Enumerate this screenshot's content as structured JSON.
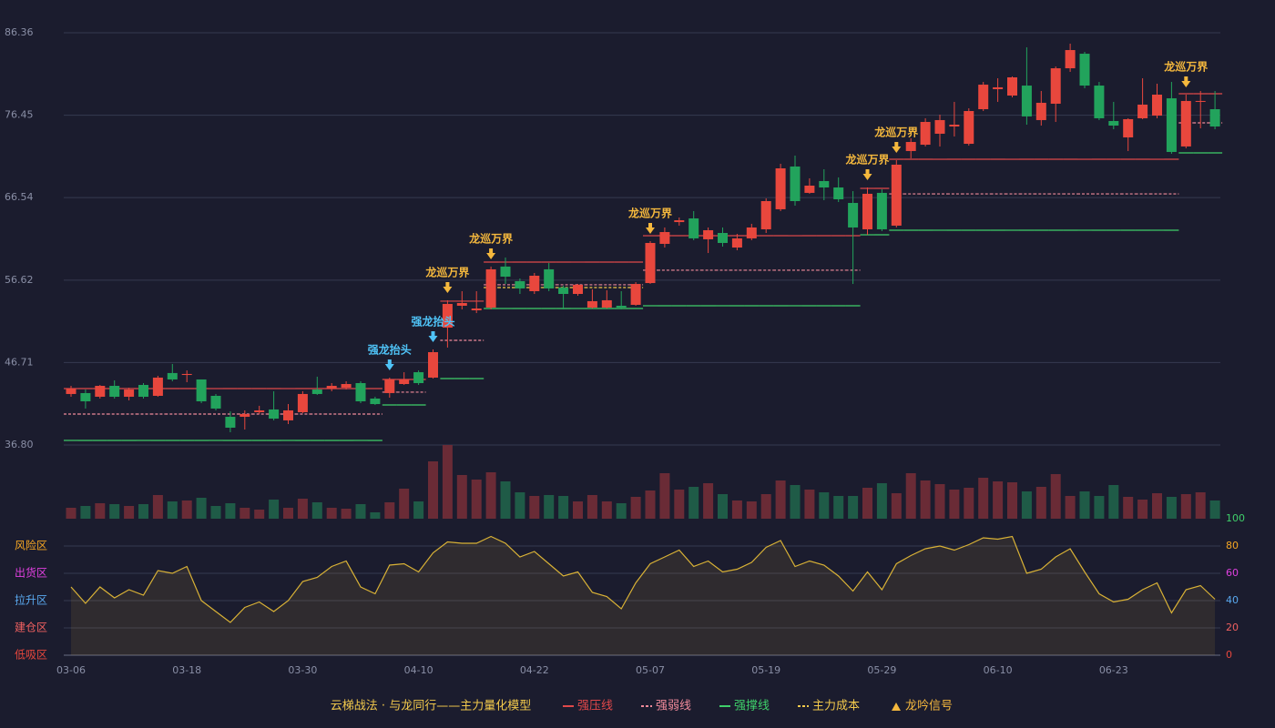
{
  "chart_data": {
    "type": "candlestick",
    "title": "云梯战法 · 与龙同行——主力量化模型",
    "categories": [
      "03-06",
      null,
      null,
      null,
      null,
      null,
      null,
      null,
      "03-18",
      null,
      null,
      null,
      null,
      null,
      null,
      null,
      "03-30",
      null,
      null,
      null,
      null,
      null,
      null,
      null,
      "04-10",
      null,
      null,
      null,
      null,
      null,
      null,
      null,
      "04-22",
      null,
      null,
      null,
      null,
      null,
      null,
      null,
      "05-07",
      null,
      null,
      null,
      null,
      null,
      null,
      null,
      "05-19",
      null,
      null,
      null,
      null,
      null,
      null,
      null,
      "05-29",
      null,
      null,
      null,
      null,
      null,
      null,
      null,
      "06-10",
      null,
      null,
      null,
      null,
      null,
      null,
      null,
      "06-23",
      null,
      null,
      null,
      null,
      null,
      null,
      null
    ],
    "open": [
      42.93,
      43.04,
      42.6,
      43.91,
      42.6,
      44.02,
      42.71,
      45.45,
      45.22,
      44.68,
      42.71,
      40.19,
      40.19,
      40.74,
      41.07,
      39.76,
      40.74,
      43.47,
      43.58,
      43.69,
      44.24,
      42.38,
      43.04,
      44.13,
      45.55,
      44.9,
      50.91,
      53.54,
      52.99,
      53.32,
      58.25,
      56.49,
      55.29,
      57.92,
      55.73,
      54.96,
      53.32,
      53.32,
      53.54,
      53.65,
      56.27,
      60.98,
      63.6,
      64.04,
      61.53,
      62.29,
      60.54,
      61.64,
      62.73,
      65.14,
      70.28,
      67.11,
      68.53,
      67.76,
      65.9,
      62.73,
      67.11,
      63.17,
      72.14,
      72.9,
      74.22,
      75.09,
      73.01,
      77.17,
      79.58,
      78.81,
      80.01,
      75.86,
      77.83,
      82.09,
      83.84,
      80.01,
      75.75,
      73.78,
      76.08,
      76.4,
      78.48,
      72.69,
      78.05,
      77.17
    ],
    "high": [
      43.91,
      43.47,
      44.02,
      44.57,
      43.69,
      44.24,
      45.12,
      46.54,
      45.77,
      44.68,
      42.93,
      40.85,
      40.96,
      41.51,
      43.26,
      41.72,
      43.26,
      45.01,
      44.24,
      44.46,
      44.46,
      42.6,
      44.9,
      45.55,
      45.77,
      48.29,
      54.2,
      55.29,
      55.29,
      58.25,
      59.34,
      56.82,
      57.48,
      58.68,
      55.95,
      56.16,
      55.51,
      55.4,
      55.29,
      56.38,
      61.31,
      62.95,
      64.15,
      64.92,
      62.95,
      62.95,
      62.18,
      63.39,
      66.45,
      70.61,
      71.59,
      68.86,
      69.95,
      68.97,
      67.32,
      67.76,
      67.54,
      71.04,
      73.67,
      76.08,
      76.51,
      78.05,
      77.28,
      80.45,
      80.89,
      81.11,
      84.61,
      79.36,
      82.31,
      85.05,
      84.06,
      80.45,
      78.05,
      76.08,
      80.89,
      80.23,
      80.45,
      78.92,
      79.36,
      79.36
    ],
    "low": [
      42.6,
      41.18,
      42.38,
      42.38,
      42.16,
      42.38,
      42.6,
      44.46,
      44.35,
      41.83,
      40.96,
      38.33,
      38.66,
      40.52,
      39.76,
      39.32,
      40.63,
      42.82,
      43.26,
      43.47,
      41.83,
      41.61,
      42.49,
      44.02,
      44.02,
      44.79,
      48.51,
      53.1,
      52.66,
      53.1,
      56.16,
      54.96,
      54.96,
      55.29,
      53.1,
      54.74,
      53.21,
      53.21,
      53.1,
      53.54,
      56.16,
      60.54,
      63.17,
      61.42,
      59.88,
      60.65,
      60.21,
      61.42,
      62.29,
      64.92,
      65.57,
      67.0,
      66.23,
      66.01,
      56.16,
      62.07,
      62.51,
      62.95,
      71.26,
      72.69,
      72.69,
      73.89,
      72.79,
      76.95,
      78.05,
      78.59,
      75.31,
      75.2,
      75.64,
      81.66,
      79.69,
      75.86,
      74.76,
      72.14,
      75.97,
      76.08,
      71.81,
      72.47,
      74.87,
      74.76
    ],
    "close": [
      43.58,
      42.05,
      43.91,
      42.6,
      43.47,
      42.6,
      44.9,
      44.68,
      45.34,
      42.05,
      41.18,
      38.88,
      40.52,
      40.96,
      39.97,
      40.96,
      42.93,
      42.93,
      43.91,
      44.13,
      42.05,
      41.72,
      44.68,
      44.68,
      44.24,
      47.96,
      53.76,
      53.87,
      53.21,
      57.92,
      57.04,
      55.62,
      57.15,
      55.62,
      54.96,
      56.06,
      54.09,
      54.2,
      53.32,
      56.16,
      61.09,
      62.4,
      63.82,
      61.64,
      62.62,
      61.09,
      61.64,
      62.95,
      66.12,
      70.06,
      66.12,
      67.98,
      67.76,
      66.34,
      62.95,
      67.0,
      62.73,
      70.5,
      73.23,
      75.64,
      75.86,
      75.31,
      76.95,
      80.12,
      79.8,
      81.0,
      76.3,
      77.94,
      82.09,
      84.28,
      80.01,
      76.08,
      75.2,
      75.97,
      77.72,
      78.92,
      72.03,
      78.16,
      78.16,
      75.09
    ],
    "up_color": "#e8473d",
    "down_color": "#22a35c",
    "ylim": [
      36.8,
      86.36
    ],
    "yticks": [
      {
        "value": 36.8,
        "label": "36.80"
      },
      46.71,
      56.62,
      66.54,
      76.45,
      86.36
    ],
    "grid": true,
    "lines": [
      {
        "name": "强压线",
        "color": "#e0484a",
        "dash": false,
        "values": [
          43.58,
          43.58,
          43.58,
          43.58,
          43.58,
          43.58,
          43.58,
          43.58,
          43.58,
          43.58,
          43.58,
          43.58,
          43.58,
          43.58,
          43.58,
          43.58,
          43.58,
          43.58,
          43.58,
          43.58,
          43.58,
          43.58,
          44.68,
          44.68,
          44.68,
          null,
          54.09,
          54.09,
          54.09,
          58.79,
          58.79,
          58.79,
          58.79,
          58.79,
          58.79,
          58.79,
          58.79,
          58.79,
          58.79,
          58.79,
          61.96,
          61.96,
          61.96,
          61.96,
          61.96,
          61.96,
          61.96,
          61.96,
          61.96,
          61.96,
          61.96,
          61.96,
          61.96,
          61.96,
          61.96,
          67.65,
          67.65,
          71.15,
          71.15,
          71.15,
          71.15,
          71.15,
          71.15,
          71.15,
          71.15,
          71.15,
          71.15,
          71.15,
          71.15,
          71.15,
          71.15,
          71.15,
          71.15,
          71.15,
          71.15,
          71.15,
          71.15,
          79.03,
          79.03,
          79.03
        ]
      },
      {
        "name": "强弱线",
        "color": "#f08a9a",
        "dash": true,
        "values": [
          40.52,
          40.52,
          40.52,
          40.52,
          40.52,
          40.52,
          40.52,
          40.52,
          40.52,
          40.52,
          40.52,
          40.52,
          40.52,
          40.52,
          40.52,
          40.52,
          40.52,
          40.52,
          40.52,
          40.52,
          40.52,
          40.52,
          43.15,
          43.15,
          43.15,
          null,
          49.38,
          49.38,
          49.38,
          56.06,
          56.06,
          56.06,
          56.06,
          56.06,
          56.06,
          56.06,
          56.06,
          56.06,
          56.06,
          56.06,
          57.81,
          57.81,
          57.81,
          57.81,
          57.81,
          57.81,
          57.81,
          57.81,
          57.81,
          57.81,
          57.81,
          57.81,
          57.81,
          57.81,
          57.81,
          null,
          null,
          66.99,
          66.99,
          66.99,
          66.99,
          66.99,
          66.99,
          66.99,
          66.99,
          66.99,
          66.99,
          66.99,
          66.99,
          66.99,
          66.99,
          66.99,
          66.99,
          66.99,
          66.99,
          66.99,
          66.99,
          75.53,
          75.53,
          75.53
        ]
      },
      {
        "name": "强撑线",
        "color": "#3fcf6a",
        "dash": false,
        "values": [
          37.35,
          37.35,
          37.35,
          37.35,
          37.35,
          37.35,
          37.35,
          37.35,
          37.35,
          37.35,
          37.35,
          37.35,
          37.35,
          37.35,
          37.35,
          37.35,
          37.35,
          37.35,
          37.35,
          37.35,
          37.35,
          37.35,
          41.61,
          41.61,
          41.61,
          null,
          44.79,
          44.79,
          44.79,
          53.21,
          53.21,
          53.21,
          53.21,
          53.21,
          53.21,
          53.21,
          53.21,
          53.21,
          53.21,
          53.21,
          53.54,
          53.54,
          53.54,
          53.54,
          53.54,
          53.54,
          53.54,
          53.54,
          53.54,
          53.54,
          53.54,
          53.54,
          53.54,
          53.54,
          53.54,
          62.07,
          62.07,
          62.62,
          62.62,
          62.62,
          62.62,
          62.62,
          62.62,
          62.62,
          62.62,
          62.62,
          62.62,
          62.62,
          62.62,
          62.62,
          62.62,
          62.62,
          62.62,
          62.62,
          62.62,
          62.62,
          62.62,
          71.92,
          71.92,
          71.92
        ]
      },
      {
        "name": "主力成本",
        "color": "#f2c94c",
        "dash": true,
        "values": [
          null,
          null,
          null,
          null,
          null,
          null,
          null,
          null,
          null,
          null,
          null,
          null,
          null,
          null,
          null,
          null,
          null,
          null,
          null,
          null,
          null,
          null,
          null,
          null,
          null,
          null,
          null,
          null,
          null,
          55.73,
          55.73,
          55.73,
          55.73,
          55.73,
          55.73,
          55.73,
          55.73,
          55.73,
          55.73,
          55.73,
          null,
          null,
          null,
          null,
          null,
          null,
          null,
          null,
          null,
          null,
          null,
          null,
          null,
          null,
          null,
          null,
          null,
          null,
          null,
          null,
          null,
          null,
          null,
          null,
          null,
          null,
          null,
          null,
          null,
          null,
          null,
          null,
          null,
          null,
          null,
          null,
          null,
          null,
          null,
          null
        ]
      }
    ],
    "signal_name": "龙吟信号",
    "signal_colors": {
      "龙巡万界": "#f5b83d",
      "强龙抬头": "#4fc3f7"
    },
    "signal": [
      null,
      null,
      null,
      null,
      null,
      null,
      null,
      null,
      null,
      null,
      null,
      null,
      null,
      null,
      null,
      null,
      null,
      null,
      null,
      null,
      null,
      null,
      "强龙抬头",
      null,
      null,
      "强龙抬头",
      "龙巡万界",
      null,
      null,
      "龙巡万界",
      null,
      null,
      null,
      null,
      null,
      null,
      null,
      null,
      null,
      null,
      "龙巡万界",
      null,
      null,
      null,
      null,
      null,
      null,
      null,
      null,
      null,
      null,
      null,
      null,
      null,
      null,
      "龙巡万界",
      null,
      "龙巡万界",
      null,
      null,
      null,
      null,
      null,
      null,
      null,
      null,
      null,
      null,
      null,
      null,
      null,
      null,
      null,
      null,
      null,
      null,
      null,
      "龙巡万界",
      null,
      null
    ],
    "volume": {
      "up_color": "#6a2b36",
      "down_color": "#1f5b47",
      "values": [
        12,
        14,
        17,
        16,
        14,
        16,
        26,
        19,
        20,
        23,
        14,
        17,
        12,
        10,
        21,
        12,
        22,
        18,
        12,
        11,
        16,
        7,
        18,
        33,
        19,
        63,
        81,
        48,
        43,
        51,
        41,
        29,
        25,
        26,
        25,
        19,
        26,
        19,
        17,
        24,
        31,
        50,
        32,
        35,
        39,
        27,
        20,
        19,
        27,
        42,
        37,
        32,
        29,
        25,
        25,
        34,
        39,
        28,
        50,
        42,
        38,
        32,
        34,
        45,
        41,
        40,
        30,
        35,
        49,
        25,
        30,
        25,
        37,
        24,
        21,
        28,
        24,
        27,
        29,
        20
      ]
    },
    "oscillator": {
      "color": "#d9b236",
      "ylim": [
        0,
        100
      ],
      "yticks": [
        0,
        20,
        40,
        60,
        80,
        100
      ],
      "tick_colors": [
        "#e8473d",
        "#f06060",
        "#5aa9f0",
        "#e040e0",
        "#f5a623",
        "#3fcf6a"
      ],
      "ytick_zones": [
        "低吸区",
        "建仓区",
        "拉升区",
        "出货区",
        "风险区",
        null
      ],
      "values": [
        50,
        38,
        50,
        42,
        48,
        44,
        62,
        60,
        65,
        40,
        32,
        24,
        35,
        39,
        32,
        40,
        54,
        57,
        65,
        69,
        50,
        45,
        66,
        67,
        61,
        75,
        83,
        82,
        82,
        87,
        82,
        72,
        76,
        67,
        58,
        61,
        46,
        43,
        34,
        53,
        67,
        72,
        77,
        65,
        69,
        61,
        63,
        68,
        79,
        84,
        65,
        69,
        66,
        58,
        47,
        61,
        48,
        67,
        73,
        78,
        80,
        77,
        81,
        86,
        85,
        87,
        60,
        63,
        72,
        78,
        61,
        45,
        39,
        41,
        48,
        53,
        31,
        48,
        51,
        41
      ]
    }
  }
}
